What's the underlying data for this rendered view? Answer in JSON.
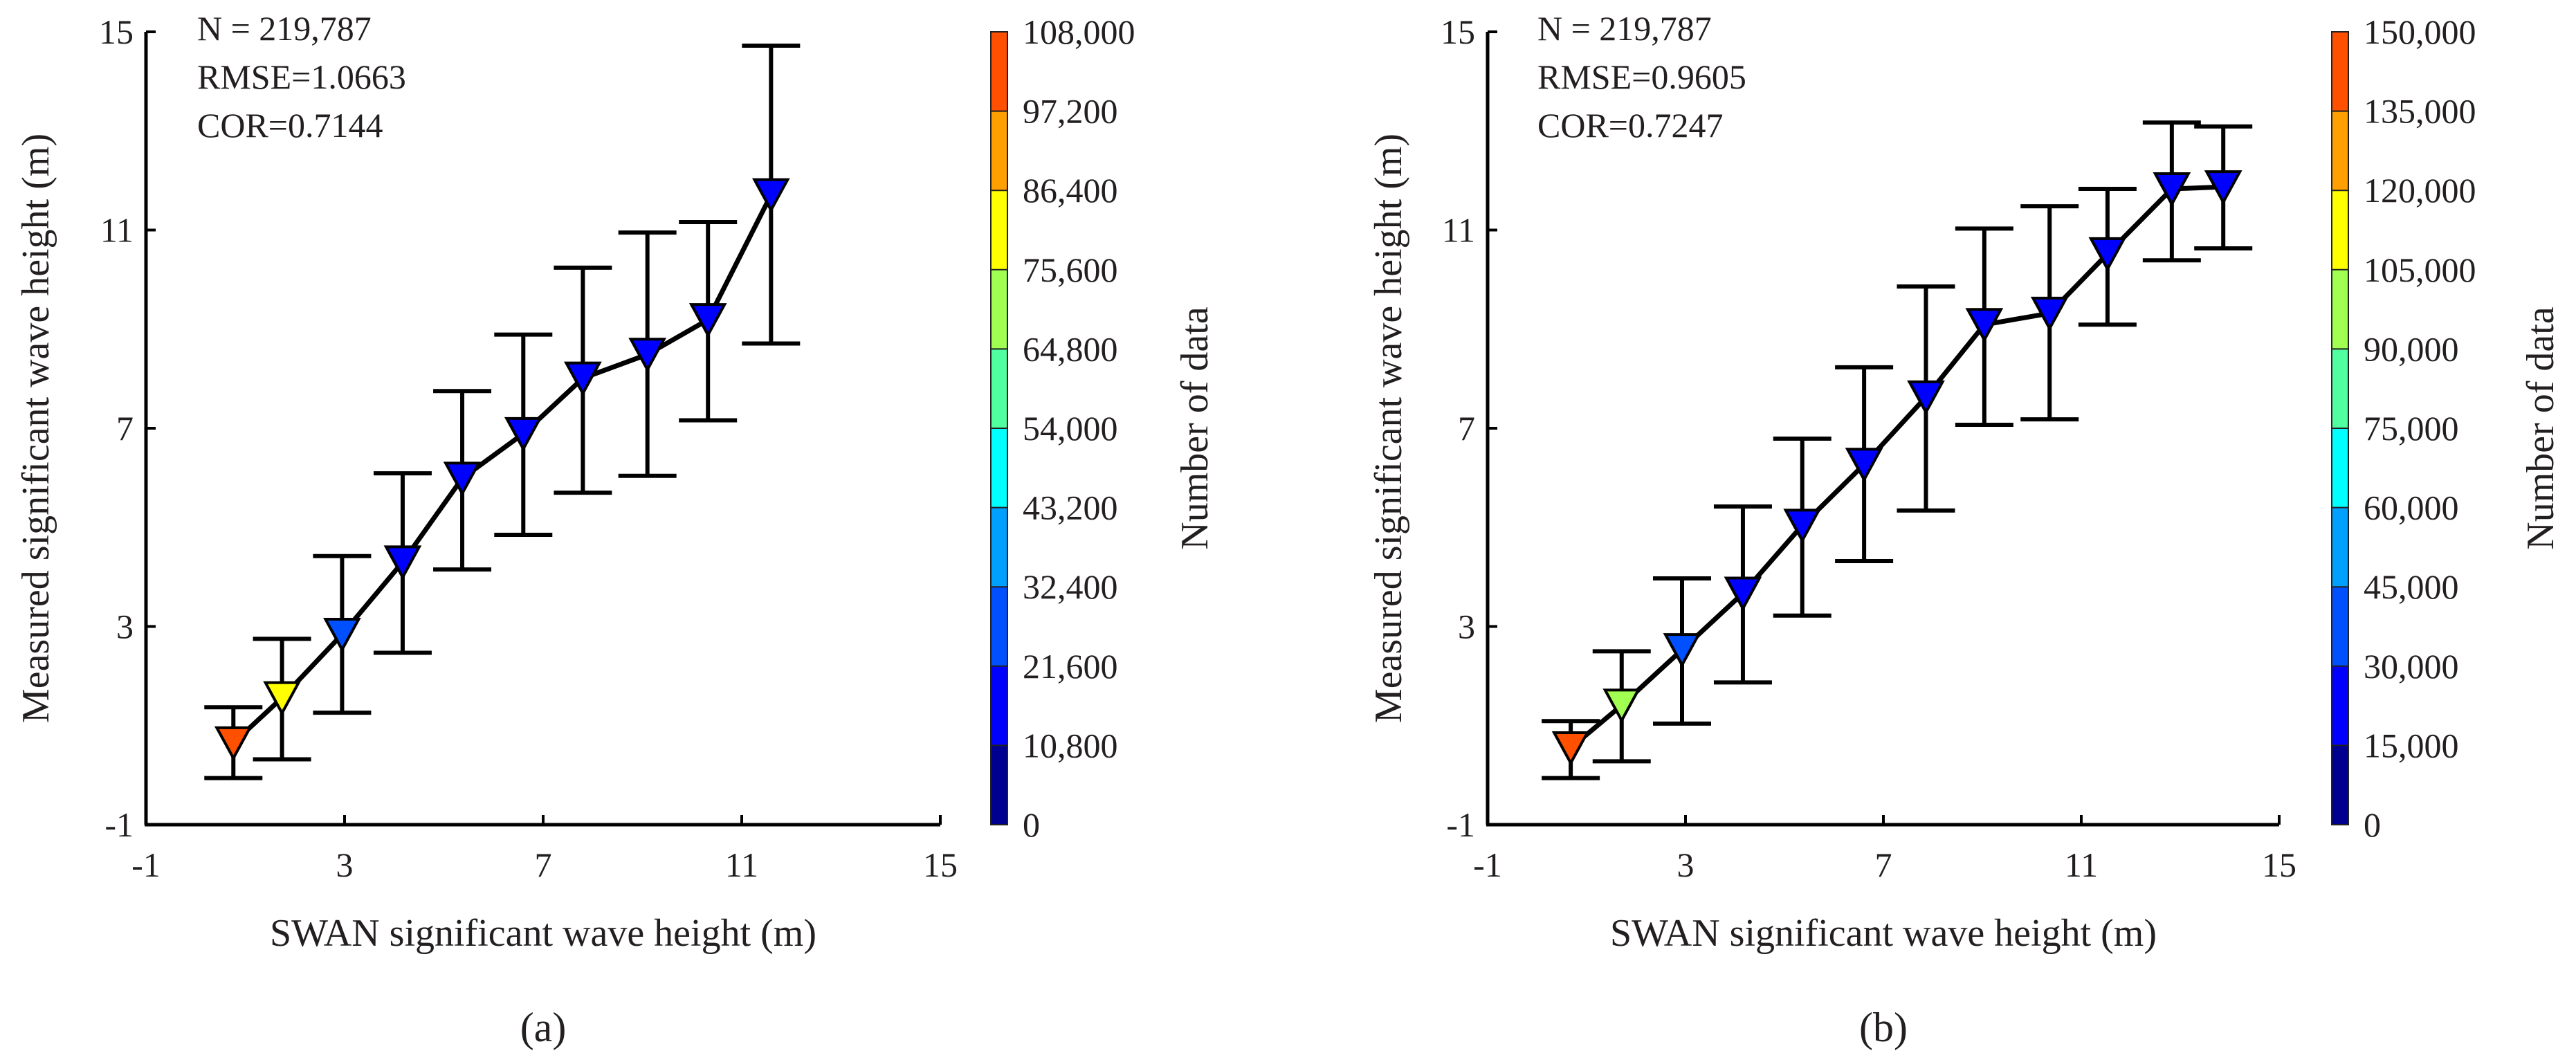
{
  "chart_data": [
    {
      "panel": "(a)",
      "panel_letter": "a",
      "type": "line",
      "xlabel": "SWAN significant wave height (m)",
      "ylabel": "Measured significant wave height (m)",
      "xlim": [
        -1,
        15
      ],
      "ylim": [
        -1,
        15
      ],
      "xticks": [
        "-1",
        "3",
        "7",
        "11",
        "15"
      ],
      "yticks": [
        "-1",
        "3",
        "7",
        "11",
        "15"
      ],
      "stats": [
        "N = 219,787",
        "RMSE=1.0663",
        "COR=0.7144"
      ],
      "colorbar": {
        "label": "Number of data",
        "range": [
          0,
          108000
        ],
        "ticks": [
          "0",
          "10,800",
          "21,600",
          "32,400",
          "43,200",
          "54,000",
          "64,800",
          "75,600",
          "86,400",
          "97,200",
          "108,000"
        ]
      },
      "series": [
        {
          "name": "mean with std error bars",
          "x": [
            0.76,
            1.74,
            2.95,
            4.17,
            5.37,
            6.6,
            7.8,
            9.1,
            10.32,
            11.59
          ],
          "y": [
            0.65,
            1.56,
            2.84,
            4.3,
            5.99,
            6.89,
            8.01,
            8.49,
            9.19,
            11.71
          ],
          "upper": [
            1.37,
            2.75,
            4.42,
            6.09,
            7.75,
            8.89,
            10.24,
            10.95,
            11.16,
            14.72
          ],
          "lower": [
            -0.06,
            0.32,
            1.26,
            2.47,
            4.15,
            4.85,
            5.7,
            6.04,
            7.16,
            8.71
          ],
          "marker_colors": [
            "#ff5000",
            "#ffff00",
            "#0050ff",
            "#0000ff",
            "#0000ff",
            "#0000ff",
            "#0000ff",
            "#0000ff",
            "#0000ff",
            "#0000ff"
          ]
        }
      ]
    },
    {
      "panel": "(b)",
      "panel_letter": "b",
      "type": "line",
      "xlabel": "SWAN significant wave height (m)",
      "ylabel": "Measured significant wave height (m)",
      "xlim": [
        -1,
        15
      ],
      "ylim": [
        -1,
        15
      ],
      "xticks": [
        "-1",
        "3",
        "7",
        "11",
        "15"
      ],
      "yticks": [
        "-1",
        "3",
        "7",
        "11",
        "15"
      ],
      "stats": [
        "N = 219,787",
        "RMSE=0.9605",
        "COR=0.7247"
      ],
      "colorbar": {
        "label": "Number of data",
        "range": [
          0,
          150000
        ],
        "ticks": [
          "0",
          "15,000",
          "30,000",
          "45,000",
          "60,000",
          "75,000",
          "90,000",
          "105,000",
          "120,000",
          "135,000",
          "150,000"
        ]
      },
      "series": [
        {
          "name": "mean with std error bars",
          "x": [
            0.68,
            1.71,
            2.93,
            4.16,
            5.36,
            6.61,
            7.86,
            9.04,
            10.36,
            11.53,
            12.83,
            13.87
          ],
          "y": [
            0.55,
            1.41,
            2.53,
            3.67,
            5.04,
            6.27,
            7.63,
            9.09,
            9.32,
            10.52,
            11.83,
            11.87
          ],
          "upper": [
            1.09,
            2.5,
            3.97,
            5.42,
            6.79,
            8.23,
            9.86,
            11.03,
            11.48,
            11.83,
            13.17,
            13.09
          ],
          "lower": [
            -0.06,
            0.28,
            1.04,
            1.87,
            3.22,
            4.32,
            5.34,
            7.07,
            7.18,
            9.09,
            10.39,
            10.63
          ],
          "marker_colors": [
            "#ff5000",
            "#a0ff50",
            "#0050ff",
            "#0000ff",
            "#0000ff",
            "#0000ff",
            "#0000ff",
            "#0000ff",
            "#0000ff",
            "#0000ff",
            "#0000ff",
            "#0000ff"
          ]
        }
      ]
    }
  ],
  "colormap": [
    "#000090",
    "#0000ff",
    "#0050ff",
    "#00a0ff",
    "#00ffff",
    "#50ffa0",
    "#a0ff50",
    "#ffff00",
    "#ffa000",
    "#ff5000"
  ]
}
